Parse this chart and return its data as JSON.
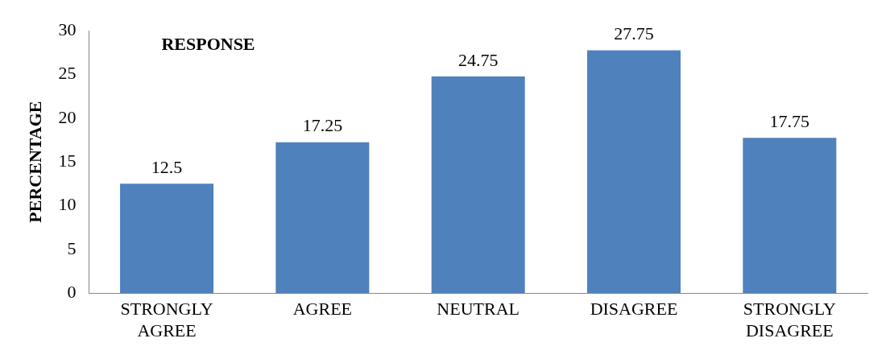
{
  "chart_data": {
    "type": "bar",
    "title": "RESPONSE",
    "ylabel": "PERCENTAGE",
    "categories": [
      "STRONGLY AGREE",
      "AGREE",
      "NEUTRAL",
      "DISAGREE",
      "STRONGLY DISAGREE"
    ],
    "values": [
      12.5,
      17.25,
      24.75,
      27.75,
      17.75
    ],
    "color": "#4f81bd",
    "ylim": [
      0,
      30
    ],
    "yticks": [
      0,
      5,
      10,
      15,
      20,
      25,
      30
    ],
    "grid": false,
    "legend": false,
    "data_labels": true
  }
}
